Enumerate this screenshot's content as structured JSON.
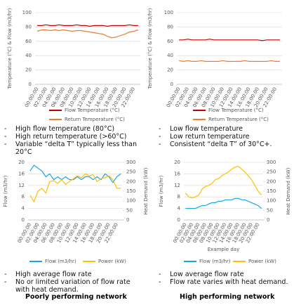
{
  "chart_data": [
    {
      "type": "line",
      "y_label": "Temperature (°C) & Flow (m3/hr)",
      "categories": [
        "00:00:00",
        null,
        "02:00:00",
        null,
        "04:00:00",
        null,
        "06:00:00",
        null,
        "08:00:00",
        null,
        "10:00:00",
        null,
        "12:00:00",
        null,
        "14:00:00",
        null,
        "16:00:00",
        null,
        "18:00:00",
        null,
        "20:00:00",
        null,
        "22:00:00",
        null
      ],
      "ylim": [
        0,
        100
      ],
      "yticks": [
        0,
        20,
        40,
        60,
        80,
        100
      ],
      "grid": true,
      "series": [
        {
          "name": "Flow Temperature (°C)",
          "color": "#c00000",
          "values": [
            82,
            82,
            83,
            82,
            82,
            83,
            82,
            82,
            82,
            83,
            82,
            82,
            81,
            82,
            82,
            82,
            81,
            82,
            82,
            82,
            82,
            83,
            82,
            82
          ]
        },
        {
          "name": "Return Temperature (°C)",
          "color": "#ed7d31",
          "values": [
            74,
            76,
            76,
            75,
            76,
            75,
            76,
            75,
            74,
            75,
            75,
            74,
            73,
            72,
            71,
            70,
            67,
            65,
            66,
            68,
            70,
            73,
            74,
            76
          ]
        }
      ]
    },
    {
      "type": "line",
      "y_label": "Temperature (°C) & Flow (m3/hr)",
      "categories": [
        "00:00:00",
        null,
        "02:00:00",
        null,
        "04:00:00",
        null,
        "06:00:00",
        null,
        "08:00:00",
        null,
        "10:00:00",
        null,
        "12:00:00",
        null,
        "14:00:00",
        null,
        "16:00:00",
        null,
        "18:00:00",
        null,
        "20:00:00",
        null,
        "22:00:00",
        null
      ],
      "ylim": [
        0,
        100
      ],
      "yticks": [
        0,
        20,
        40,
        60,
        80,
        100
      ],
      "grid": true,
      "series": [
        {
          "name": "Flow Temperature (°C)",
          "color": "#c00000",
          "values": [
            62,
            62,
            63,
            62,
            62,
            62,
            62,
            63,
            62,
            62,
            62,
            62,
            62,
            62,
            62,
            62,
            62,
            62,
            62,
            61,
            62,
            62,
            62,
            62
          ]
        },
        {
          "name": "Return Temperature (°C)",
          "color": "#ed7d31",
          "values": [
            33,
            32,
            33,
            32,
            32,
            33,
            32,
            32,
            32,
            32,
            33,
            32,
            32,
            32,
            32,
            33,
            32,
            32,
            32,
            32,
            32,
            33,
            32,
            32
          ]
        }
      ]
    },
    {
      "type": "line",
      "y_label": "Flow (m3/hr)",
      "y2_label": "Heat Demand (kW)",
      "categories": [
        "00:00:00",
        null,
        "02:00:00",
        null,
        "04:00:00",
        null,
        "06:00:00",
        null,
        "08:00:00",
        null,
        "10:00:00",
        null,
        "12:00:00",
        null,
        "14:00:00",
        null,
        "16:00:00",
        null,
        "18:00:00",
        null,
        "20:00:00",
        null,
        "22:00:00",
        null
      ],
      "ylim": [
        0,
        20
      ],
      "yticks": [
        0,
        4,
        8,
        12,
        16,
        20
      ],
      "y2lim": [
        0,
        300
      ],
      "y2ticks": [
        0,
        50,
        100,
        150,
        200,
        250,
        300
      ],
      "grid": true,
      "series": [
        {
          "name": "Flow (m3/hr)",
          "color": "#1aa7e6",
          "values": [
            17,
            19,
            18,
            17,
            15,
            16,
            14,
            15,
            14,
            15,
            14,
            14,
            15,
            14,
            15,
            15,
            14,
            15,
            14,
            16,
            15,
            13,
            15,
            16
          ]
        },
        {
          "name": "Power (kW)",
          "color": "#ffc000",
          "axis": "y2",
          "values": [
            130,
            95,
            150,
            165,
            140,
            200,
            205,
            190,
            210,
            185,
            200,
            215,
            230,
            220,
            240,
            230,
            235,
            200,
            215,
            220,
            230,
            210,
            165,
            165
          ]
        }
      ]
    },
    {
      "type": "line",
      "y_label": "Flow (m3/hr)",
      "y2_label": "Heat Demand (kW)",
      "x_label": "Example day",
      "categories": [
        "00:00:00",
        null,
        "02:00:00",
        null,
        "04:00:00",
        null,
        "06:00:00",
        null,
        "08:00:00",
        null,
        "10:00:00",
        null,
        "12:00:00",
        null,
        "14:00:00",
        null,
        "16:00:00",
        null,
        "18:00:00",
        null,
        "20:00:00",
        null,
        "22:00:00",
        null
      ],
      "ylim": [
        0,
        20
      ],
      "yticks": [
        0,
        4,
        8,
        12,
        16,
        20
      ],
      "y2lim": [
        0,
        300
      ],
      "y2ticks": [
        0,
        50,
        100,
        150,
        200,
        250,
        300
      ],
      "grid": true,
      "series": [
        {
          "name": "Flow (m3/hr)",
          "color": "#1aa7e6",
          "values": [
            4,
            4,
            4,
            4,
            4.5,
            5,
            5,
            5.5,
            6,
            6,
            6.5,
            6.5,
            7,
            7,
            7,
            7.5,
            7.5,
            7,
            7,
            6.5,
            6,
            5.5,
            5,
            4
          ]
        },
        {
          "name": "Power (kW)",
          "color": "#ffc000",
          "axis": "y2",
          "values": [
            140,
            120,
            115,
            120,
            130,
            160,
            175,
            180,
            190,
            210,
            215,
            230,
            240,
            250,
            265,
            275,
            280,
            265,
            250,
            230,
            210,
            180,
            150,
            130
          ]
        }
      ]
    }
  ],
  "notes": {
    "top_left": [
      "High flow temperature (80°C)",
      "High return temperature (>60°C)",
      "Variable “delta T” typically less than 20°C"
    ],
    "top_right": [
      "Low flow temperature",
      "Low return temperature",
      "Consistent “delta T” of 30°C+."
    ],
    "bottom_left": [
      "High average flow rate",
      "No or limited variation of flow rate with heat demand."
    ],
    "bottom_right": [
      "Low average flow rate",
      "Flow rate varies with heat demand."
    ]
  },
  "captions": [
    "Poorly performing network",
    "High performing network"
  ]
}
